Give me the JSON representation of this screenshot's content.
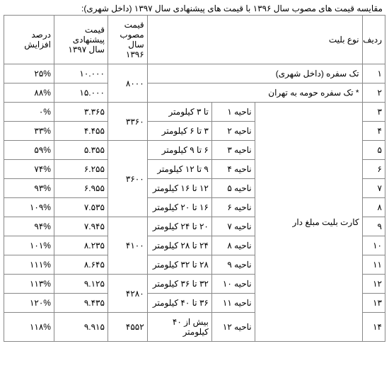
{
  "title": "مقایسه قیمت های مصوب سال ۱۳۹۶ با قیمت های پیشنهادی سال ۱۳۹۷ (داخل شهری):",
  "headers": {
    "row": "ردیف",
    "ticket_type": "نوع بلیت",
    "price96": "قیمت مصوب سال ۱۳۹۶",
    "price97": "قیمت پیشنهادی سال ۱۳۹۷",
    "increase": "درصد افزایش"
  },
  "group_label": "کارت بلیت مبلغ دار",
  "row1": {
    "num": "۱",
    "type": "تک سفره (داخل شهری)",
    "p97": "۱۰.۰۰۰",
    "inc": "۲۵%"
  },
  "row2": {
    "num": "۲",
    "type": "* تک سفره حومه به تهران",
    "p97": "۱۵.۰۰۰",
    "inc": "۸۸%"
  },
  "g96_a": "۸۰۰۰",
  "row3": {
    "num": "۳",
    "zone": "ناحیه ۱",
    "range": "تا ۳ کیلومتر",
    "p97": "۳.۳۶۵",
    "inc": "۰%"
  },
  "row4": {
    "num": "۴",
    "zone": "ناحیه ۲",
    "range": "۳ تا ۶ کیلومتر",
    "p97": "۴.۴۵۵",
    "inc": "۳۳%"
  },
  "g96_b": "۳۳۶۰",
  "row5": {
    "num": "۵",
    "zone": "ناحیه ۳",
    "range": "۶ تا ۹ کیلومتر",
    "p97": "۵.۳۵۵",
    "inc": "۵۹%"
  },
  "row6": {
    "num": "۶",
    "zone": "ناحیه ۴",
    "range": "۹ تا ۱۲ کیلومتر",
    "p97": "۶.۲۵۵",
    "inc": "۷۴%"
  },
  "row7": {
    "num": "۷",
    "zone": "ناحیه ۵",
    "range": "۱۲ تا ۱۶ کیلومتر",
    "p97": "۶.۹۵۵",
    "inc": "۹۳%"
  },
  "g96_c": "۳۶۰۰",
  "row8": {
    "num": "۸",
    "zone": "ناحیه ۶",
    "range": "۱۶ تا ۲۰ کیلومتر",
    "p97": "۷.۵۳۵",
    "inc": "۱۰۹%"
  },
  "row9": {
    "num": "۹",
    "zone": "ناحیه ۷",
    "range": "۲۰ تا ۲۴ کیلومتر",
    "p97": "۷.۹۴۵",
    "inc": "۹۴%"
  },
  "row10": {
    "num": "۱۰",
    "zone": "ناحیه ۸",
    "range": "۲۴ تا ۲۸ کیلومتر",
    "p97": "۸.۲۳۵",
    "inc": "۱۰۱%"
  },
  "g96_d": "۴۱۰۰",
  "row11": {
    "num": "۱۱",
    "zone": "ناحیه ۹",
    "range": "۲۸ تا ۳۲ کیلومتر",
    "p97": "۸.۶۴۵",
    "inc": "۱۱۱%"
  },
  "row12": {
    "num": "۱۲",
    "zone": "ناحیه ۱۰",
    "range": "۳۲ تا ۳۶ کیلومتر",
    "p97": "۹.۱۲۵",
    "inc": "۱۱۳%"
  },
  "g96_e": "۴۲۸۰",
  "row13": {
    "num": "۱۳",
    "zone": "ناحیه ۱۱",
    "range": "۳۶ تا ۴۰ کیلومتر",
    "p97": "۹.۴۳۵",
    "inc": "۱۲۰%"
  },
  "row14": {
    "num": "۱۴",
    "zone": "ناحیه ۱۲",
    "range": "بیش از ۴۰ کیلومتر",
    "p97": "۹.۹۱۵",
    "inc": "۱۱۸%"
  },
  "g96_f": "۴۵۵۲"
}
